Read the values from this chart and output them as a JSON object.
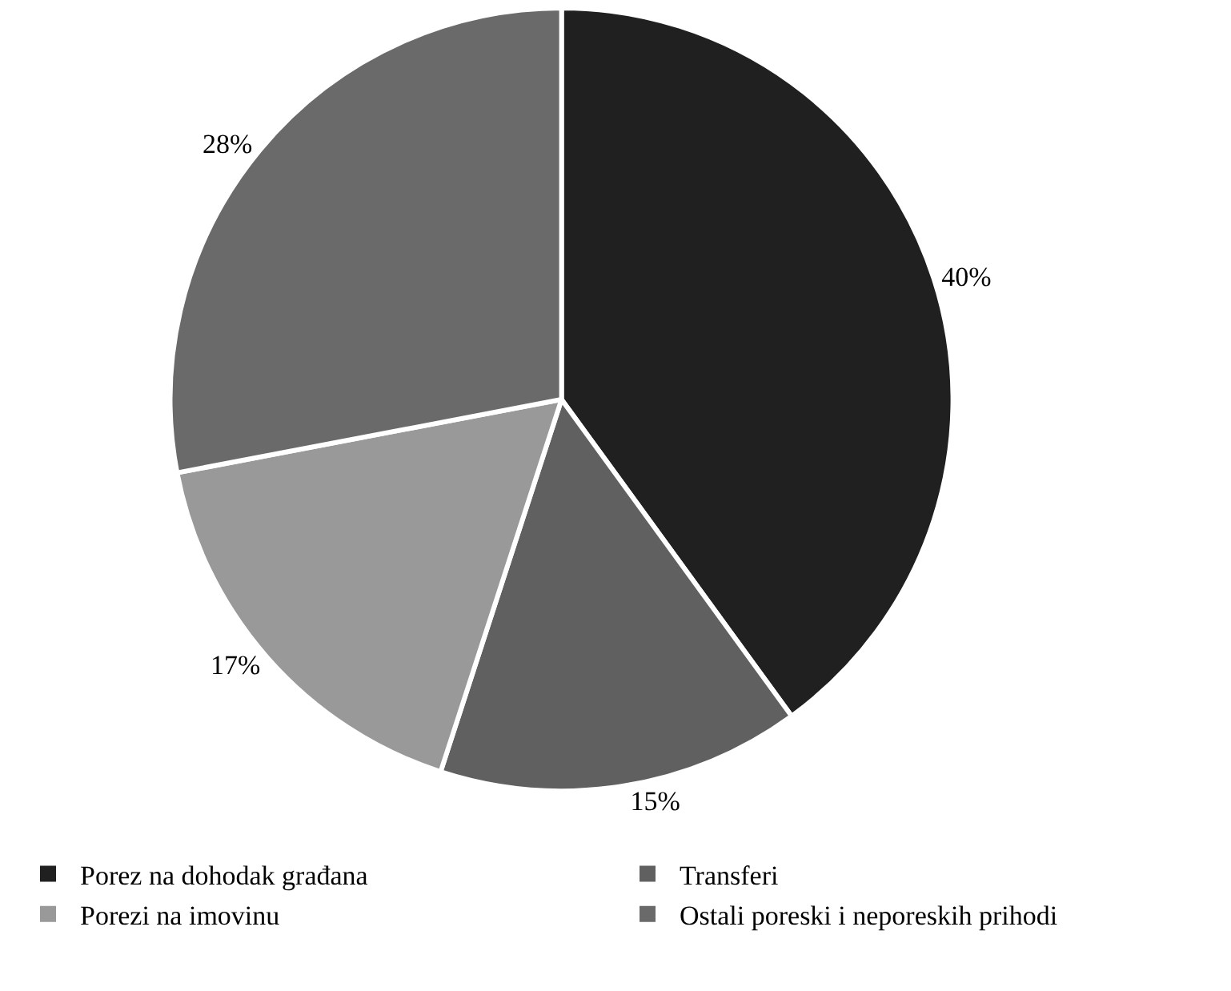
{
  "chart_data": {
    "type": "pie",
    "categories": [
      "Porez na dohodak građana",
      "Transferi",
      "Porezi na imovinu",
      "Ostali poreski i neporeskih prihodi"
    ],
    "values": [
      40,
      15,
      17,
      28
    ],
    "value_labels": [
      "40%",
      "15%",
      "17%",
      "28%"
    ],
    "colors": [
      "#202020",
      "#606060",
      "#999999",
      "#6a6a6a"
    ],
    "legend": "bottom"
  }
}
